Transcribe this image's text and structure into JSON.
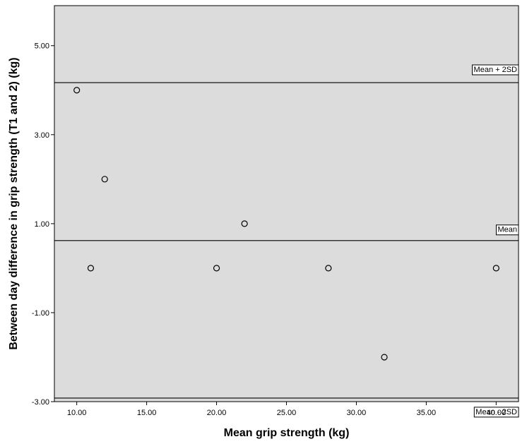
{
  "chart_data": {
    "type": "scatter",
    "title": "",
    "xlabel": "Mean grip strength (kg)",
    "ylabel": "Between day difference in grip strength (T1 and 2) (kg)",
    "xlim": [
      8.4,
      41.6
    ],
    "ylim": [
      -3.0,
      5.9
    ],
    "xticks": [
      10,
      15,
      20,
      25,
      30,
      35,
      40
    ],
    "xtick_labels": [
      "10.00",
      "15.00",
      "20.00",
      "25.00",
      "30.00",
      "35.00",
      "40.00"
    ],
    "yticks": [
      -3,
      -1,
      1,
      3,
      5
    ],
    "ytick_labels": [
      "-3.00",
      "-1.00",
      "1.00",
      "3.00",
      "5.00"
    ],
    "grid": false,
    "background": "#dcdcdc",
    "points": [
      {
        "x": 10,
        "y": 4
      },
      {
        "x": 11,
        "y": 0
      },
      {
        "x": 12,
        "y": 2
      },
      {
        "x": 20,
        "y": 0
      },
      {
        "x": 22,
        "y": 1
      },
      {
        "x": 28,
        "y": 0
      },
      {
        "x": 32,
        "y": -2
      },
      {
        "x": 40,
        "y": 0
      }
    ],
    "reference_lines": [
      {
        "label": "Mean + 2SD",
        "y": 4.17
      },
      {
        "label": "Mean",
        "y": 0.62
      },
      {
        "label": "Mean - 2SD",
        "y": -2.92
      }
    ]
  }
}
